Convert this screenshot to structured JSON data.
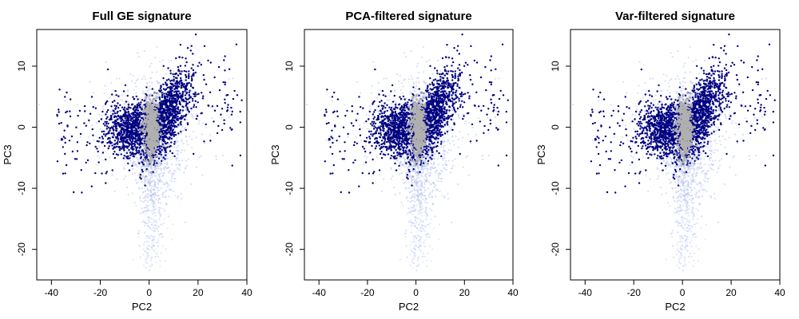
{
  "chart_data": [
    {
      "type": "scatter",
      "title": "Full GE signature",
      "xlabel": "PC2",
      "ylabel": "PC3",
      "xticks": [
        -40,
        -20,
        0,
        20,
        40
      ],
      "yticks": [
        -20,
        -10,
        0,
        10
      ],
      "xlim": [
        -46,
        40
      ],
      "ylim": [
        -25,
        16
      ],
      "grid": false,
      "legend": "none",
      "series": [
        {
          "role": "background cloud",
          "color": "#b7c5f2",
          "description_of_extent": {
            "x_range": [
              -45,
              38
            ],
            "y_range": [
              -24,
              14
            ]
          }
        },
        {
          "role": "highlighted points",
          "color": "#000080",
          "clusters": [
            {
              "center": [
                -6,
                0
              ],
              "spread": [
                9,
                3
              ]
            },
            {
              "center": [
                7,
                2
              ],
              "spread": [
                6,
                5
              ]
            }
          ]
        },
        {
          "role": "center core",
          "color": "#b0b0b0",
          "clusters": [
            {
              "center": [
                1,
                0
              ],
              "spread": [
                2,
                2.5
              ]
            }
          ]
        }
      ]
    },
    {
      "type": "scatter",
      "title": "PCA-filtered signature",
      "xlabel": "PC2",
      "ylabel": "PC3",
      "xticks": [
        -40,
        -20,
        0,
        20,
        40
      ],
      "yticks": [
        -20,
        -10,
        0,
        10
      ],
      "xlim": [
        -46,
        40
      ],
      "ylim": [
        -25,
        16
      ],
      "grid": false,
      "legend": "none",
      "series": [
        {
          "role": "background cloud",
          "color": "#b7c5f2",
          "description_of_extent": {
            "x_range": [
              -45,
              38
            ],
            "y_range": [
              -24,
              14
            ]
          }
        },
        {
          "role": "highlighted points",
          "color": "#000080",
          "clusters": [
            {
              "center": [
                -6,
                0
              ],
              "spread": [
                9,
                3
              ]
            },
            {
              "center": [
                7,
                2
              ],
              "spread": [
                6,
                5
              ]
            }
          ]
        },
        {
          "role": "center core",
          "color": "#b0b0b0",
          "clusters": [
            {
              "center": [
                1,
                0
              ],
              "spread": [
                2,
                2.5
              ]
            }
          ]
        }
      ]
    },
    {
      "type": "scatter",
      "title": "Var-filtered signature",
      "xlabel": "PC2",
      "ylabel": "PC3",
      "xticks": [
        -40,
        -20,
        0,
        20,
        40
      ],
      "yticks": [
        -20,
        -10,
        0,
        10
      ],
      "xlim": [
        -46,
        40
      ],
      "ylim": [
        -25,
        16
      ],
      "grid": false,
      "legend": "none",
      "series": [
        {
          "role": "background cloud",
          "color": "#b7c5f2",
          "description_of_extent": {
            "x_range": [
              -45,
              38
            ],
            "y_range": [
              -24,
              14
            ]
          }
        },
        {
          "role": "highlighted points",
          "color": "#000080",
          "clusters": [
            {
              "center": [
                -6,
                0
              ],
              "spread": [
                9,
                3
              ]
            },
            {
              "center": [
                7,
                2
              ],
              "spread": [
                6,
                5
              ]
            }
          ]
        },
        {
          "role": "center core",
          "color": "#b0b0b0",
          "clusters": [
            {
              "center": [
                1,
                0
              ],
              "spread": [
                2,
                2.5
              ]
            }
          ]
        }
      ]
    }
  ]
}
